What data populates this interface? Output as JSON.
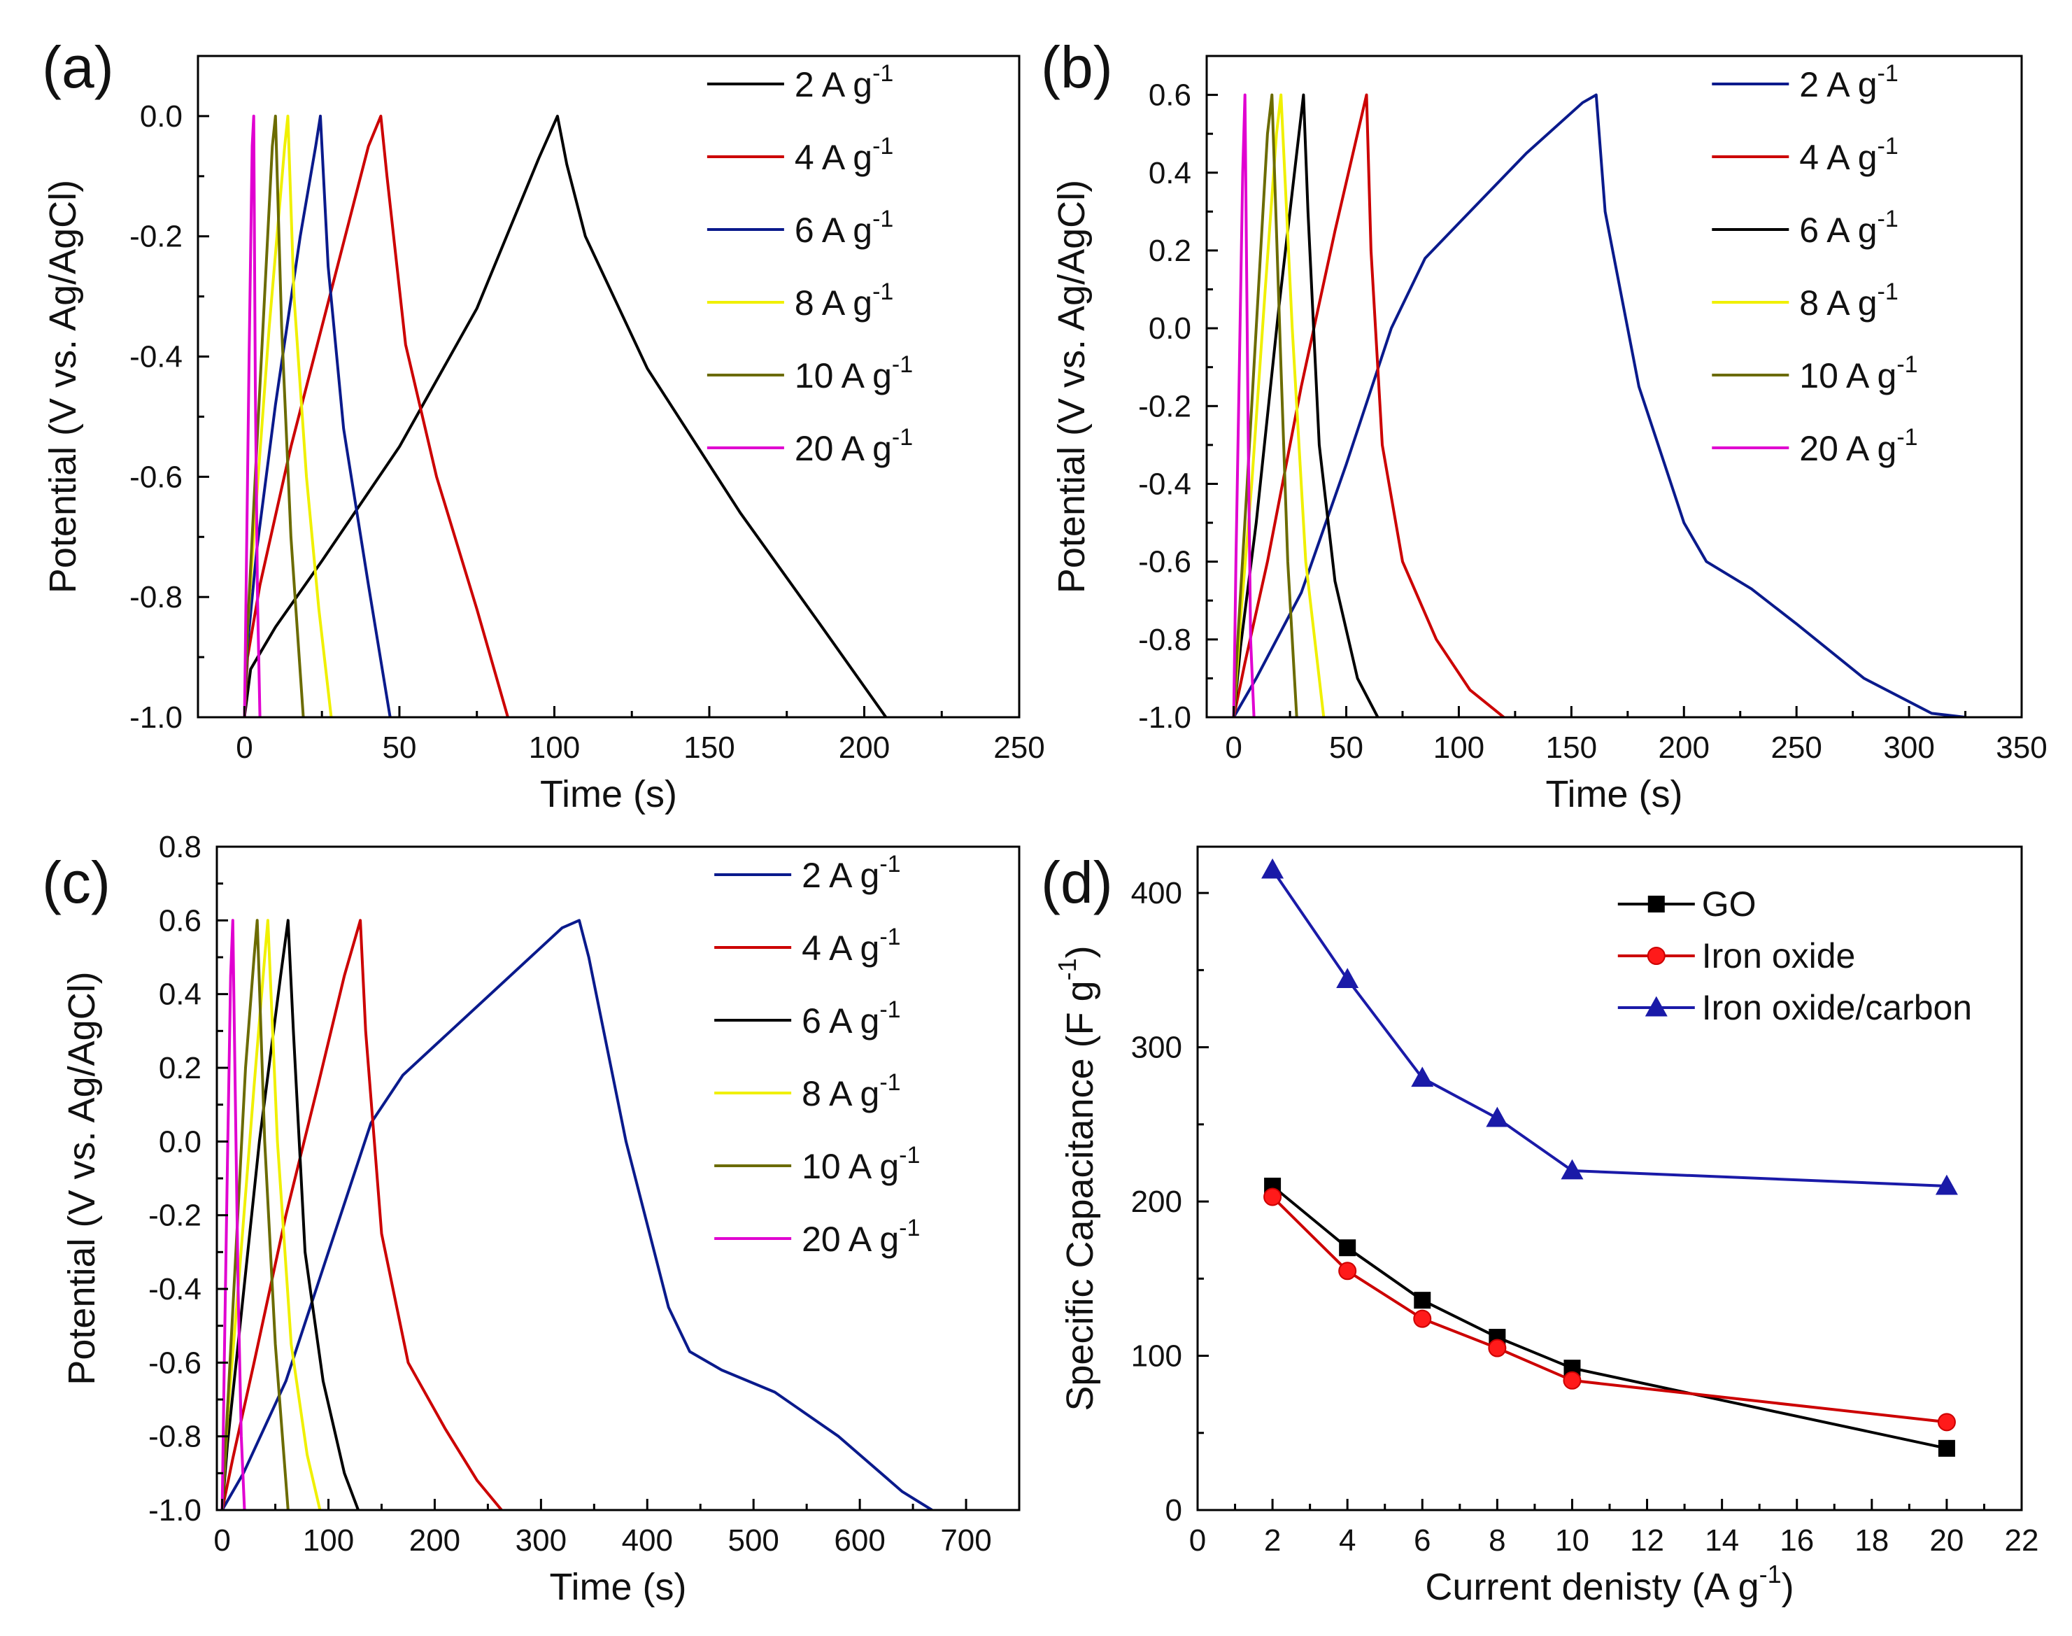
{
  "chart_data": [
    {
      "panel": "(a)",
      "type": "line",
      "xlabel": "Time (s)",
      "ylabel": "Potential (V vs. Ag/AgCl)",
      "xlim": [
        -15,
        250
      ],
      "ylim": [
        -1.0,
        0.1
      ],
      "xticks": [
        0,
        50,
        100,
        150,
        200,
        250
      ],
      "yticks": [
        -1.0,
        -0.8,
        -0.6,
        -0.4,
        -0.2,
        0.0
      ],
      "ytick_labels": [
        "-1.0",
        "-0.8",
        "-0.6",
        "-0.4",
        "-0.2",
        "0.0"
      ],
      "legend_position": "top-right",
      "series": [
        {
          "name": "2 A g",
          "sup": "-1",
          "color": "#000000",
          "x": [
            0,
            2,
            10,
            25,
            50,
            75,
            95,
            101,
            104,
            110,
            130,
            160,
            185,
            207
          ],
          "y": [
            -1.0,
            -0.92,
            -0.85,
            -0.74,
            -0.55,
            -0.32,
            -0.07,
            0.0,
            -0.08,
            -0.2,
            -0.42,
            -0.66,
            -0.84,
            -1.0
          ]
        },
        {
          "name": "4 A g",
          "sup": "-1",
          "color": "#cc0000",
          "x": [
            0,
            1,
            5,
            15,
            30,
            40,
            44,
            46,
            52,
            62,
            75,
            85
          ],
          "y": [
            -1.0,
            -0.9,
            -0.78,
            -0.55,
            -0.25,
            -0.05,
            0.0,
            -0.1,
            -0.38,
            -0.6,
            -0.82,
            -1.0
          ]
        },
        {
          "name": "6 A g",
          "sup": "-1",
          "color": "#0a1a8c",
          "x": [
            0,
            1,
            4,
            10,
            18,
            23,
            24.5,
            27,
            32,
            40,
            47
          ],
          "y": [
            -1.0,
            -0.88,
            -0.72,
            -0.48,
            -0.2,
            -0.05,
            0.0,
            -0.25,
            -0.52,
            -0.78,
            -1.0
          ]
        },
        {
          "name": "8 A g",
          "sup": "-1",
          "color": "#f0f000",
          "x": [
            0,
            1,
            3,
            8,
            13,
            14,
            16,
            20,
            24,
            28
          ],
          "y": [
            -1.0,
            -0.85,
            -0.7,
            -0.35,
            -0.05,
            0.0,
            -0.3,
            -0.6,
            -0.82,
            -1.0
          ]
        },
        {
          "name": "10 A g",
          "sup": "-1",
          "color": "#6b6b00",
          "x": [
            0,
            1,
            3,
            6,
            9,
            10,
            12,
            15,
            19
          ],
          "y": [
            -1.0,
            -0.85,
            -0.65,
            -0.35,
            -0.05,
            0.0,
            -0.35,
            -0.7,
            -1.0
          ]
        },
        {
          "name": "20 A g",
          "sup": "-1",
          "color": "#e000d0",
          "x": [
            0,
            0.5,
            1.5,
            2.5,
            3,
            3.5,
            4.2,
            5
          ],
          "y": [
            -1.0,
            -0.8,
            -0.4,
            -0.05,
            0.0,
            -0.45,
            -0.8,
            -1.0
          ]
        }
      ]
    },
    {
      "panel": "(b)",
      "type": "line",
      "xlabel": "Time (s)",
      "ylabel": "Potential (V vs. Ag/AgCl)",
      "xlim": [
        -12,
        350
      ],
      "ylim": [
        -1.0,
        0.7
      ],
      "xticks": [
        0,
        50,
        100,
        150,
        200,
        250,
        300,
        350
      ],
      "yticks": [
        -1.0,
        -0.8,
        -0.6,
        -0.4,
        -0.2,
        0.0,
        0.2,
        0.4,
        0.6
      ],
      "ytick_labels": [
        "-1.0",
        "-0.8",
        "-0.6",
        "-0.4",
        "-0.2",
        "0.0",
        "0.2",
        "0.4",
        "0.6"
      ],
      "legend_position": "top-right",
      "series": [
        {
          "name": "2 A g",
          "sup": "-1",
          "color": "#0a1a8c",
          "x": [
            0,
            10,
            30,
            50,
            70,
            85,
            100,
            130,
            155,
            161,
            165,
            180,
            200,
            210,
            230,
            250,
            280,
            310,
            325
          ],
          "y": [
            -1.0,
            -0.9,
            -0.68,
            -0.35,
            0.0,
            0.18,
            0.27,
            0.45,
            0.58,
            0.6,
            0.3,
            -0.15,
            -0.5,
            -0.6,
            -0.67,
            -0.76,
            -0.9,
            -0.99,
            -1.0
          ]
        },
        {
          "name": "4 A g",
          "sup": "-1",
          "color": "#cc0000",
          "x": [
            0,
            5,
            15,
            30,
            45,
            55,
            59,
            61,
            66,
            75,
            90,
            105,
            120
          ],
          "y": [
            -1.0,
            -0.86,
            -0.6,
            -0.15,
            0.25,
            0.5,
            0.6,
            0.2,
            -0.3,
            -0.6,
            -0.8,
            -0.93,
            -1.0
          ]
        },
        {
          "name": "6 A g",
          "sup": "-1",
          "color": "#000000",
          "x": [
            0,
            3,
            10,
            20,
            28,
            31,
            33,
            38,
            45,
            55,
            64
          ],
          "y": [
            -1.0,
            -0.82,
            -0.5,
            0.05,
            0.45,
            0.6,
            0.3,
            -0.3,
            -0.65,
            -0.9,
            -1.0
          ]
        },
        {
          "name": "8 A g",
          "sup": "-1",
          "color": "#f0f000",
          "x": [
            0,
            3,
            8,
            14,
            19,
            21,
            26,
            32,
            40
          ],
          "y": [
            -1.0,
            -0.75,
            -0.4,
            0.1,
            0.5,
            0.6,
            0.0,
            -0.6,
            -1.0
          ]
        },
        {
          "name": "10 A g",
          "sup": "-1",
          "color": "#6b6b00",
          "x": [
            0,
            2,
            6,
            11,
            15,
            17,
            21,
            24,
            28
          ],
          "y": [
            -1.0,
            -0.78,
            -0.4,
            0.1,
            0.5,
            0.6,
            -0.1,
            -0.6,
            -1.0
          ]
        },
        {
          "name": "20 A g",
          "sup": "-1",
          "color": "#e000d0",
          "x": [
            0,
            1,
            2.5,
            4,
            5,
            5.5,
            6.5,
            7.5,
            9
          ],
          "y": [
            -1.0,
            -0.6,
            -0.1,
            0.4,
            0.6,
            0.3,
            -0.3,
            -0.8,
            -1.0
          ]
        }
      ]
    },
    {
      "panel": "(c)",
      "type": "line",
      "xlabel": "Time (s)",
      "ylabel": "Potential (V vs. Ag/AgCl)",
      "xlim": [
        -5,
        750
      ],
      "ylim": [
        -1.0,
        0.8
      ],
      "xticks": [
        0,
        100,
        200,
        300,
        400,
        500,
        600,
        700
      ],
      "yticks": [
        -1.0,
        -0.8,
        -0.6,
        -0.4,
        -0.2,
        0.0,
        0.2,
        0.4,
        0.6,
        0.8
      ],
      "ytick_labels": [
        "-1.0",
        "-0.8",
        "-0.6",
        "-0.4",
        "-0.2",
        "0.0",
        "0.2",
        "0.4",
        "0.6",
        "0.8"
      ],
      "legend_position": "top-right",
      "series": [
        {
          "name": "2 A g",
          "sup": "-1",
          "color": "#0a1a8c",
          "x": [
            0,
            20,
            60,
            100,
            140,
            170,
            200,
            260,
            320,
            336,
            345,
            380,
            420,
            440,
            470,
            520,
            580,
            640,
            668
          ],
          "y": [
            -1.0,
            -0.9,
            -0.65,
            -0.3,
            0.05,
            0.18,
            0.26,
            0.42,
            0.58,
            0.6,
            0.5,
            0.0,
            -0.45,
            -0.57,
            -0.62,
            -0.68,
            -0.8,
            -0.95,
            -1.0
          ]
        },
        {
          "name": "4 A g",
          "sup": "-1",
          "color": "#cc0000",
          "x": [
            0,
            10,
            30,
            60,
            90,
            115,
            130,
            135,
            150,
            175,
            210,
            240,
            263
          ],
          "y": [
            -1.0,
            -0.86,
            -0.6,
            -0.2,
            0.15,
            0.45,
            0.6,
            0.3,
            -0.25,
            -0.6,
            -0.78,
            -0.92,
            -1.0
          ]
        },
        {
          "name": "6 A g",
          "sup": "-1",
          "color": "#000000",
          "x": [
            0,
            5,
            15,
            35,
            55,
            62,
            67,
            78,
            95,
            115,
            128
          ],
          "y": [
            -1.0,
            -0.82,
            -0.55,
            0.0,
            0.45,
            0.6,
            0.3,
            -0.3,
            -0.65,
            -0.9,
            -1.0
          ]
        },
        {
          "name": "8 A g",
          "sup": "-1",
          "color": "#f0f000",
          "x": [
            0,
            5,
            15,
            30,
            40,
            43,
            52,
            65,
            80,
            92
          ],
          "y": [
            -1.0,
            -0.75,
            -0.4,
            0.15,
            0.5,
            0.6,
            0.0,
            -0.55,
            -0.85,
            -1.0
          ]
        },
        {
          "name": "10 A g",
          "sup": "-1",
          "color": "#6b6b00",
          "x": [
            0,
            4,
            12,
            22,
            30,
            33,
            40,
            50,
            62
          ],
          "y": [
            -1.0,
            -0.78,
            -0.35,
            0.2,
            0.5,
            0.6,
            0.0,
            -0.55,
            -1.0
          ]
        },
        {
          "name": "20 A g",
          "sup": "-1",
          "color": "#e000d0",
          "x": [
            0,
            2,
            5,
            8,
            10,
            12,
            15,
            18,
            21
          ],
          "y": [
            -1.0,
            -0.6,
            -0.05,
            0.45,
            0.6,
            0.2,
            -0.4,
            -0.8,
            -1.0
          ]
        }
      ]
    },
    {
      "panel": "(d)",
      "type": "line",
      "xlabel": "Current denisty (A g",
      "xlabel_sup": "-1",
      "xlabel_tail": ")",
      "ylabel": "Specific Capacitance (F g",
      "ylabel_sup": "-1",
      "ylabel_tail": ")",
      "xlim": [
        0,
        22
      ],
      "ylim": [
        0,
        430
      ],
      "xticks": [
        0,
        2,
        4,
        6,
        8,
        10,
        12,
        14,
        16,
        18,
        20,
        22
      ],
      "yticks": [
        0,
        100,
        200,
        300,
        400
      ],
      "legend_position": "top-right",
      "categories": [
        2,
        4,
        6,
        8,
        10,
        20
      ],
      "series": [
        {
          "name": "GO",
          "color": "#000000",
          "marker": "square",
          "values": [
            210,
            170,
            136,
            112,
            92,
            40
          ]
        },
        {
          "name": "Iron oxide",
          "color": "#cc0000",
          "marker": "circle",
          "values": [
            203,
            155,
            124,
            105,
            84,
            57
          ]
        },
        {
          "name": "Iron oxide/carbon",
          "color": "#1a1aa8",
          "marker": "triangle",
          "values": [
            415,
            344,
            280,
            254,
            220,
            210
          ]
        }
      ]
    }
  ]
}
